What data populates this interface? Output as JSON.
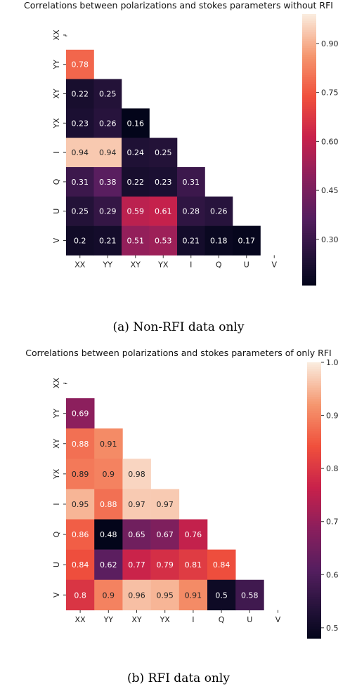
{
  "chart_data": [
    {
      "type": "heatmap",
      "title": "Correlations between polarizations and stokes parameters without RFI",
      "x_labels": [
        "XX",
        "YY",
        "XY",
        "YX",
        "I",
        "Q",
        "U",
        "V"
      ],
      "y_labels": [
        "XX",
        "YY",
        "XY",
        "YX",
        "I",
        "Q",
        "U",
        "V"
      ],
      "mask": "upper triangle including diagonal",
      "diagonal_marker": "-",
      "values": [
        [
          null,
          null,
          null,
          null,
          null,
          null,
          null,
          null
        ],
        [
          0.78,
          null,
          null,
          null,
          null,
          null,
          null,
          null
        ],
        [
          0.22,
          0.25,
          null,
          null,
          null,
          null,
          null,
          null
        ],
        [
          0.23,
          0.26,
          0.16,
          null,
          null,
          null,
          null,
          null
        ],
        [
          0.94,
          0.94,
          0.24,
          0.25,
          null,
          null,
          null,
          null
        ],
        [
          0.31,
          0.38,
          0.22,
          0.23,
          0.31,
          null,
          null,
          null
        ],
        [
          0.25,
          0.29,
          0.59,
          0.61,
          0.28,
          0.26,
          null,
          null
        ],
        [
          0.2,
          0.21,
          0.51,
          0.53,
          0.21,
          0.18,
          0.17,
          null
        ]
      ],
      "colorbar": {
        "colormap": "rocket",
        "range": [
          0.16,
          0.99
        ],
        "ticks": [
          0.3,
          0.45,
          0.6,
          0.75,
          0.9
        ],
        "tick_labels": [
          "0.30",
          "0.45",
          "0.60",
          "0.75",
          "0.90"
        ]
      },
      "caption": "(a) Non-RFI data only"
    },
    {
      "type": "heatmap",
      "title": "Correlations between polarizations and stokes parameters of only RFI",
      "x_labels": [
        "XX",
        "YY",
        "XY",
        "YX",
        "I",
        "Q",
        "U",
        "V"
      ],
      "y_labels": [
        "XX",
        "YY",
        "XY",
        "YX",
        "I",
        "Q",
        "U",
        "V"
      ],
      "mask": "upper triangle including diagonal",
      "diagonal_marker": "-",
      "values": [
        [
          null,
          null,
          null,
          null,
          null,
          null,
          null,
          null
        ],
        [
          0.69,
          null,
          null,
          null,
          null,
          null,
          null,
          null
        ],
        [
          0.88,
          0.91,
          null,
          null,
          null,
          null,
          null,
          null
        ],
        [
          0.89,
          0.9,
          0.98,
          null,
          null,
          null,
          null,
          null
        ],
        [
          0.95,
          0.88,
          0.97,
          0.97,
          null,
          null,
          null,
          null
        ],
        [
          0.86,
          0.48,
          0.65,
          0.67,
          0.76,
          null,
          null,
          null
        ],
        [
          0.84,
          0.62,
          0.77,
          0.79,
          0.81,
          0.84,
          null,
          null
        ],
        [
          0.8,
          0.9,
          0.96,
          0.95,
          0.91,
          0.5,
          0.58,
          null
        ]
      ],
      "colorbar": {
        "colormap": "rocket",
        "range": [
          0.48,
          1.0
        ],
        "ticks": [
          0.5,
          0.6,
          0.7,
          0.8,
          0.9,
          1.0
        ],
        "tick_labels": [
          "0.5",
          "0.6",
          "0.7",
          "0.8",
          "0.9",
          "1.0"
        ]
      },
      "caption": "(b) RFI data only"
    }
  ]
}
